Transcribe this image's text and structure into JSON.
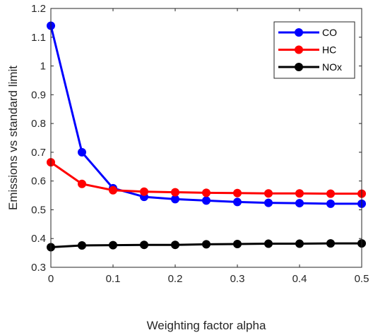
{
  "chart_data": {
    "type": "line",
    "xlabel": "Weighting factor alpha",
    "ylabel": "Emissions vs standard limit",
    "xlim": [
      0,
      0.5
    ],
    "ylim": [
      0.3,
      1.2
    ],
    "xticks": [
      "0",
      "0.1",
      "0.2",
      "0.3",
      "0.4",
      "0.5"
    ],
    "yticks": [
      "0.3",
      "0.4",
      "0.5",
      "0.6",
      "0.7",
      "0.8",
      "0.9",
      "1",
      "1.1",
      "1.2"
    ],
    "x": [
      0,
      0.05,
      0.1,
      0.15,
      0.2,
      0.25,
      0.3,
      0.35,
      0.4,
      0.45,
      0.5
    ],
    "legend_position": "top-right",
    "grid": false,
    "series": [
      {
        "name": "CO",
        "color": "#0000ff",
        "values": [
          1.14,
          0.7,
          0.575,
          0.545,
          0.537,
          0.532,
          0.527,
          0.524,
          0.523,
          0.521,
          0.521
        ]
      },
      {
        "name": "HC",
        "color": "#ff0000",
        "values": [
          0.665,
          0.59,
          0.568,
          0.563,
          0.561,
          0.559,
          0.558,
          0.557,
          0.557,
          0.556,
          0.556
        ]
      },
      {
        "name": "NOx",
        "color": "#000000",
        "values": [
          0.37,
          0.376,
          0.377,
          0.378,
          0.378,
          0.38,
          0.381,
          0.382,
          0.382,
          0.383,
          0.383
        ]
      }
    ]
  }
}
